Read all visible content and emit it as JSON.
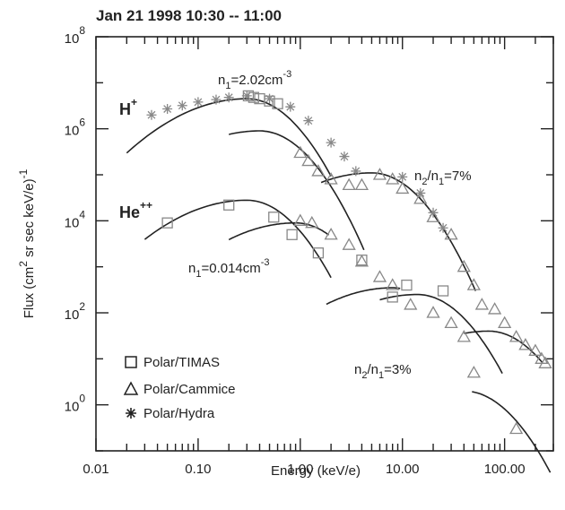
{
  "chart_data": {
    "type": "scatter",
    "title": "Jan 21 1998 10:30 -- 11:00",
    "xlabel": "Energy (keV/e)",
    "ylabel": {
      "main": "Flux (cm",
      "exp1": "2",
      "mid": " sr sec keV/e)",
      "exp2": "-1"
    },
    "x_scale": "log",
    "y_scale": "log",
    "xlim": [
      0.01,
      300
    ],
    "ylim": [
      0.1,
      100000000
    ],
    "x_ticks": [
      {
        "value": 0.01,
        "label": "0.01"
      },
      {
        "value": 0.1,
        "label": "0.10"
      },
      {
        "value": 1,
        "label": "1.00"
      },
      {
        "value": 10,
        "label": "10.00"
      },
      {
        "value": 100,
        "label": "100.00"
      }
    ],
    "y_ticks": [
      {
        "value": 1,
        "base": "10",
        "exp": "0"
      },
      {
        "value": 100,
        "base": "10",
        "exp": "2"
      },
      {
        "value": 10000,
        "base": "10",
        "exp": "4"
      },
      {
        "value": 1000000,
        "base": "10",
        "exp": "6"
      },
      {
        "value": 100000000,
        "base": "10",
        "exp": "8"
      }
    ],
    "legend": {
      "placement": "bottom-left",
      "items": [
        {
          "symbol": "square",
          "label": "Polar/TIMAS"
        },
        {
          "symbol": "triangle",
          "label": "Polar/Cammice"
        },
        {
          "symbol": "star",
          "label": "Polar/Hydra"
        }
      ]
    },
    "species_labels": [
      {
        "base": "H",
        "sup": "+"
      },
      {
        "base": "He",
        "sup": "++"
      }
    ],
    "annotations": [
      {
        "pre": "n",
        "sub": "1",
        "post": "=2.02cm",
        "sup": "-3"
      },
      {
        "pre": "n",
        "sub": "2",
        "mid": "/n",
        "sub2": "1",
        "post": "=7%"
      },
      {
        "pre": "n",
        "sub": "1",
        "post": "=0.014cm",
        "sup": "-3"
      },
      {
        "pre": "n",
        "sub": "2",
        "mid": "/n",
        "sub2": "1",
        "post": "=3%"
      }
    ],
    "series": [
      {
        "name": "Polar/TIMAS",
        "marker": "square",
        "points": [
          [
            0.31,
            5200000
          ],
          [
            0.35,
            4800000
          ],
          [
            0.4,
            4500000
          ],
          [
            0.5,
            4000000
          ],
          [
            0.6,
            3500000
          ],
          [
            0.05,
            9000
          ],
          [
            0.2,
            22000
          ],
          [
            0.55,
            12000
          ],
          [
            0.83,
            5000
          ],
          [
            1.5,
            2000
          ],
          [
            4.0,
            1400
          ],
          [
            8.0,
            220
          ],
          [
            11.0,
            400
          ],
          [
            25.0,
            300
          ]
        ]
      },
      {
        "name": "Polar/Cammice",
        "marker": "triangle",
        "points": [
          [
            1.0,
            300000
          ],
          [
            1.2,
            200000
          ],
          [
            1.5,
            120000
          ],
          [
            2.0,
            80000
          ],
          [
            3.0,
            60000
          ],
          [
            4.0,
            60000
          ],
          [
            6.0,
            100000
          ],
          [
            8.0,
            80000
          ],
          [
            10.0,
            50000
          ],
          [
            15.0,
            30000
          ],
          [
            20.0,
            12000
          ],
          [
            30.0,
            5000
          ],
          [
            40.0,
            1000
          ],
          [
            50.0,
            400
          ],
          [
            60.0,
            150
          ],
          [
            80.0,
            120
          ],
          [
            100.0,
            60
          ],
          [
            130.0,
            30
          ],
          [
            160.0,
            20
          ],
          [
            200.0,
            15
          ],
          [
            230.0,
            10
          ],
          [
            250.0,
            8
          ],
          [
            1.0,
            10000
          ],
          [
            1.3,
            9000
          ],
          [
            2.0,
            5000
          ],
          [
            3.0,
            3000
          ],
          [
            4.0,
            1300
          ],
          [
            6.0,
            600
          ],
          [
            8.0,
            400
          ],
          [
            12.0,
            150
          ],
          [
            20.0,
            100
          ],
          [
            30.0,
            60
          ],
          [
            40.0,
            30
          ],
          [
            50.0,
            5
          ],
          [
            130.0,
            0.3
          ]
        ]
      },
      {
        "name": "Polar/Hydra",
        "marker": "star",
        "points": [
          [
            0.035,
            2000000
          ],
          [
            0.05,
            2700000
          ],
          [
            0.07,
            3200000
          ],
          [
            0.1,
            3800000
          ],
          [
            0.15,
            4300000
          ],
          [
            0.2,
            4800000
          ],
          [
            0.3,
            5200000
          ],
          [
            0.5,
            4500000
          ],
          [
            0.8,
            3000000
          ],
          [
            1.2,
            1500000
          ],
          [
            2.0,
            500000
          ],
          [
            2.7,
            250000
          ],
          [
            3.5,
            120000
          ],
          [
            10.0,
            90000
          ],
          [
            15.0,
            40000
          ],
          [
            20.0,
            15000
          ],
          [
            25.0,
            7000
          ]
        ]
      }
    ],
    "fit_curves": [
      {
        "peak": [
          0.3,
          4500000
        ],
        "from": 0.02,
        "to": 2.0
      },
      {
        "peak": [
          0.4,
          900000
        ],
        "from": 0.2,
        "to": 4.2
      },
      {
        "peak": [
          5.0,
          110000
        ],
        "from": 1.6,
        "to": 52.0
      },
      {
        "peak": [
          0.3,
          28000
        ],
        "from": 0.03,
        "to": 2.0
      },
      {
        "peak": [
          0.9,
          9000
        ],
        "from": 0.2,
        "to": 1.9
      },
      {
        "peak": [
          8.0,
          350
        ],
        "from": 1.8,
        "to": 9.5
      },
      {
        "peak": [
          14.0,
          250
        ],
        "from": 6.0,
        "to": 95.0
      },
      {
        "peak": [
          70.0,
          40
        ],
        "from": 40.0,
        "to": 235.0
      },
      {
        "peak": [
          40.0,
          2
        ],
        "from": 48.0,
        "to": 280.0
      }
    ]
  }
}
